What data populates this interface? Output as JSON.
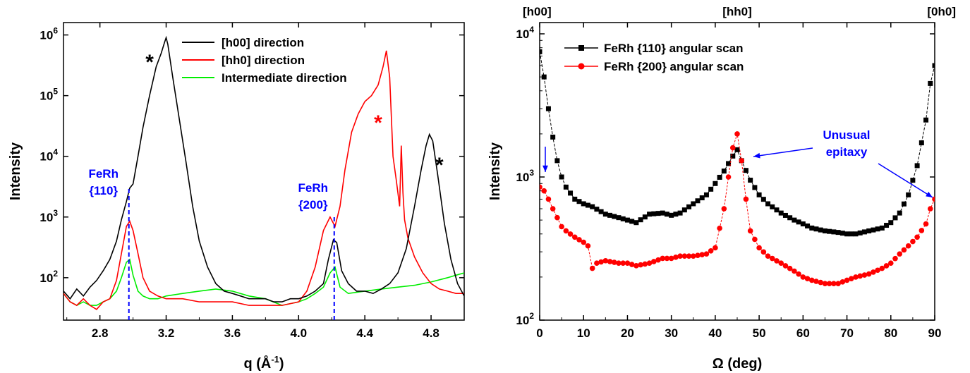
{
  "chart_data": [
    {
      "type": "line",
      "xlabel": "q (Å",
      "xlabel_sup": "-1",
      "xlabel_end": ")",
      "ylabel": "Intensity",
      "xlim": [
        2.58,
        5.0
      ],
      "ylim": [
        20,
        1600000
      ],
      "yscale": "log",
      "xticks": [
        2.8,
        3.2,
        3.6,
        4.0,
        4.4,
        4.8
      ],
      "xtick_labels": [
        "2.8",
        "3.2",
        "3.6",
        "4.0",
        "4.4",
        "4.8"
      ],
      "yticks": [
        100,
        1000,
        10000,
        100000,
        1000000
      ],
      "ytick_base": "10",
      "ytick_exponents": [
        "2",
        "3",
        "4",
        "5",
        "6"
      ],
      "legend_position": "top-right",
      "series": [
        {
          "name": "[h00] direction",
          "color": "#000000",
          "x": [
            2.58,
            2.62,
            2.66,
            2.7,
            2.74,
            2.78,
            2.82,
            2.86,
            2.9,
            2.93,
            2.96,
            2.98,
            3.0,
            3.03,
            3.06,
            3.1,
            3.14,
            3.17,
            3.19,
            3.2,
            3.21,
            3.24,
            3.28,
            3.32,
            3.36,
            3.4,
            3.45,
            3.5,
            3.55,
            3.6,
            3.65,
            3.7,
            3.75,
            3.8,
            3.85,
            3.9,
            3.95,
            4.0,
            4.05,
            4.1,
            4.15,
            4.18,
            4.21,
            4.23,
            4.26,
            4.3,
            4.35,
            4.4,
            4.45,
            4.5,
            4.55,
            4.6,
            4.65,
            4.7,
            4.74,
            4.77,
            4.79,
            4.81,
            4.84,
            4.88,
            4.92,
            4.96,
            5.0
          ],
          "y": [
            60,
            45,
            65,
            50,
            70,
            90,
            130,
            200,
            400,
            900,
            1800,
            3000,
            3500,
            10000,
            30000,
            100000,
            300000,
            500000,
            750000,
            900000,
            700000,
            200000,
            40000,
            8000,
            1500,
            400,
            150,
            80,
            60,
            55,
            50,
            45,
            45,
            45,
            40,
            40,
            45,
            45,
            50,
            60,
            80,
            200,
            420,
            380,
            130,
            80,
            60,
            60,
            55,
            65,
            80,
            120,
            300,
            1500,
            6000,
            15000,
            23000,
            18000,
            5000,
            800,
            200,
            80,
            50
          ]
        },
        {
          "name": "[hh0] direction",
          "color": "#ff0000",
          "x": [
            2.58,
            2.62,
            2.66,
            2.7,
            2.74,
            2.78,
            2.82,
            2.86,
            2.9,
            2.93,
            2.96,
            2.98,
            3.0,
            3.03,
            3.06,
            3.1,
            3.15,
            3.2,
            3.3,
            3.4,
            3.5,
            3.6,
            3.7,
            3.8,
            3.9,
            4.0,
            4.05,
            4.1,
            4.15,
            4.19,
            4.22,
            4.25,
            4.28,
            4.32,
            4.36,
            4.4,
            4.44,
            4.48,
            4.51,
            4.53,
            4.55,
            4.57,
            4.59,
            4.61,
            4.62,
            4.63,
            4.64,
            4.66,
            4.7,
            4.75,
            4.8,
            4.85,
            4.9,
            4.95,
            5.0
          ],
          "y": [
            55,
            40,
            35,
            45,
            35,
            30,
            40,
            45,
            90,
            250,
            700,
            850,
            600,
            250,
            100,
            60,
            50,
            45,
            45,
            40,
            40,
            40,
            35,
            35,
            35,
            40,
            60,
            150,
            600,
            1000,
            700,
            1500,
            6000,
            25000,
            50000,
            80000,
            100000,
            150000,
            300000,
            550000,
            200000,
            10000,
            4000,
            1500,
            15000,
            2500,
            900,
            450,
            220,
            120,
            80,
            65,
            60,
            55,
            55
          ]
        },
        {
          "name": "Intermediate direction",
          "color": "#00ee00",
          "x": [
            2.58,
            2.62,
            2.66,
            2.7,
            2.74,
            2.78,
            2.82,
            2.86,
            2.9,
            2.93,
            2.96,
            2.98,
            3.0,
            3.03,
            3.06,
            3.1,
            3.15,
            3.2,
            3.3,
            3.4,
            3.5,
            3.6,
            3.7,
            3.8,
            3.9,
            4.0,
            4.05,
            4.1,
            4.15,
            4.19,
            4.22,
            4.25,
            4.3,
            4.4,
            4.5,
            4.6,
            4.7,
            4.8,
            4.9,
            4.95,
            5.0
          ],
          "y": [
            55,
            40,
            35,
            40,
            35,
            35,
            40,
            45,
            60,
            100,
            180,
            200,
            110,
            60,
            50,
            45,
            45,
            50,
            55,
            60,
            65,
            60,
            50,
            45,
            35,
            40,
            45,
            55,
            70,
            120,
            150,
            70,
            55,
            60,
            65,
            70,
            75,
            85,
            100,
            110,
            120
          ]
        }
      ],
      "markers": [
        {
          "x": 2.975,
          "label": "FeRh\n{110}",
          "label_lines": [
            "FeRh",
            "{110}"
          ],
          "color": "#0000ff"
        },
        {
          "x": 4.215,
          "label": "FeRh\n{200}",
          "label_lines": [
            "FeRh",
            "{200}"
          ],
          "color": "#0000ff"
        }
      ],
      "annotations": [
        {
          "text": "*",
          "x": 3.1,
          "y": 400000,
          "color": "#000000"
        },
        {
          "text": "*",
          "x": 4.48,
          "y": 40000,
          "color": "#ff0000"
        },
        {
          "text": "*",
          "x": 4.85,
          "y": 8000,
          "color": "#000000"
        }
      ]
    },
    {
      "type": "line",
      "xlabel": "Ω (deg)",
      "ylabel": "Intensity",
      "xlim": [
        0,
        90
      ],
      "ylim": [
        100,
        10000
      ],
      "yscale": "log",
      "xticks": [
        0,
        10,
        20,
        30,
        40,
        50,
        60,
        70,
        80,
        90
      ],
      "xtick_labels": [
        "0",
        "10",
        "20",
        "30",
        "40",
        "50",
        "60",
        "70",
        "80",
        "90"
      ],
      "yticks": [
        100,
        1000,
        10000
      ],
      "ytick_base": "10",
      "ytick_exponents": [
        "2",
        "3",
        "4"
      ],
      "top_labels": [
        {
          "x": 0,
          "text": "[h00]"
        },
        {
          "x": 45,
          "text": "[hh0]"
        },
        {
          "x": 90,
          "text": "[0h0]"
        }
      ],
      "legend_position": "top-left",
      "series": [
        {
          "name": "FeRh {110} angular scan",
          "color": "#000000",
          "marker": "square",
          "x": [
            0,
            1,
            2,
            3,
            4,
            5,
            6,
            8,
            10,
            12,
            15,
            18,
            20,
            22,
            25,
            28,
            30,
            32,
            35,
            38,
            40,
            42,
            44,
            45,
            46,
            48,
            50,
            52,
            55,
            58,
            60,
            62,
            65,
            68,
            70,
            72,
            75,
            78,
            80,
            82,
            84,
            86,
            88,
            89,
            90
          ],
          "y": [
            7500,
            5000,
            3000,
            1900,
            1300,
            1000,
            850,
            700,
            650,
            620,
            550,
            520,
            500,
            480,
            550,
            560,
            540,
            560,
            650,
            750,
            900,
            1100,
            1400,
            1550,
            1300,
            950,
            750,
            650,
            560,
            500,
            470,
            440,
            420,
            410,
            400,
            400,
            420,
            440,
            480,
            560,
            750,
            1200,
            2500,
            4500,
            6000
          ]
        },
        {
          "name": "FeRh {200} angular scan",
          "color": "#ff0000",
          "marker": "circle",
          "x": [
            0,
            1,
            2,
            3,
            4,
            5,
            6,
            8,
            10,
            11,
            12,
            13,
            15,
            18,
            20,
            22,
            25,
            28,
            30,
            32,
            35,
            38,
            40,
            42,
            43,
            44,
            45,
            46,
            47,
            48,
            50,
            52,
            55,
            58,
            60,
            62,
            65,
            68,
            70,
            72,
            75,
            78,
            80,
            82,
            84,
            86,
            88,
            89,
            90
          ],
          "y": [
            850,
            800,
            700,
            600,
            520,
            450,
            420,
            380,
            350,
            330,
            230,
            250,
            260,
            250,
            250,
            240,
            250,
            270,
            270,
            280,
            280,
            290,
            320,
            600,
            1000,
            1600,
            2000,
            1300,
            700,
            420,
            320,
            280,
            250,
            220,
            200,
            190,
            180,
            180,
            190,
            200,
            210,
            230,
            250,
            290,
            330,
            380,
            470,
            600,
            700
          ]
        }
      ],
      "annotations": [
        {
          "text": "Unusual",
          "color": "#0000ff"
        },
        {
          "text": "epitaxy",
          "color": "#0000ff"
        }
      ]
    }
  ]
}
